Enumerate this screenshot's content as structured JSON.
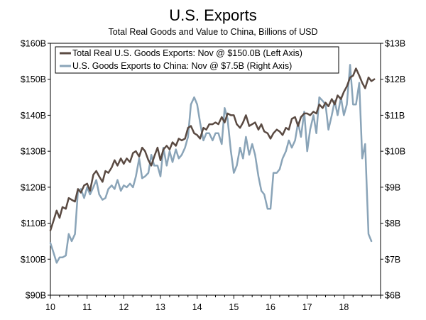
{
  "chart_data": {
    "type": "line",
    "title": "U.S. Exports",
    "subtitle": "Total Real Goods and Value to China, Billions of USD",
    "x_ticks": [
      "10",
      "11",
      "12",
      "13",
      "14",
      "15",
      "16",
      "17",
      "18"
    ],
    "y_left_ticks": [
      "$90B",
      "$100B",
      "$110B",
      "$120B",
      "$130B",
      "$140B",
      "$150B",
      "$160B"
    ],
    "y_right_ticks": [
      "$6B",
      "$7B",
      "$8B",
      "$9B",
      "$10B",
      "$11B",
      "$12B",
      "$13B"
    ],
    "ylim_left": [
      90,
      160
    ],
    "ylim_right": [
      6,
      13
    ],
    "xlim": [
      2010.0,
      2019.0
    ],
    "grid": false,
    "legend_position": "top-left",
    "series": [
      {
        "name": "Total Real U.S. Goods Exports: Nov @ $150.0B (Left Axis)",
        "axis": "left",
        "color": "#5a4a42",
        "points": [
          [
            2010.0,
            108.0
          ],
          [
            2010.08,
            110.5
          ],
          [
            2010.17,
            113.5
          ],
          [
            2010.25,
            111.5
          ],
          [
            2010.33,
            114.5
          ],
          [
            2010.42,
            114.0
          ],
          [
            2010.5,
            117.0
          ],
          [
            2010.58,
            116.5
          ],
          [
            2010.67,
            116.0
          ],
          [
            2010.75,
            119.5
          ],
          [
            2010.83,
            118.5
          ],
          [
            2010.92,
            120.5
          ],
          [
            2011.0,
            121.0
          ],
          [
            2011.08,
            119.0
          ],
          [
            2011.17,
            123.5
          ],
          [
            2011.25,
            124.5
          ],
          [
            2011.33,
            123.0
          ],
          [
            2011.42,
            121.5
          ],
          [
            2011.5,
            124.5
          ],
          [
            2011.58,
            124.0
          ],
          [
            2011.67,
            125.5
          ],
          [
            2011.75,
            127.5
          ],
          [
            2011.83,
            126.0
          ],
          [
            2011.92,
            128.0
          ],
          [
            2012.0,
            126.5
          ],
          [
            2012.08,
            128.0
          ],
          [
            2012.17,
            127.0
          ],
          [
            2012.25,
            129.5
          ],
          [
            2012.33,
            130.0
          ],
          [
            2012.42,
            128.5
          ],
          [
            2012.5,
            131.0
          ],
          [
            2012.58,
            130.0
          ],
          [
            2012.67,
            127.5
          ],
          [
            2012.75,
            126.0
          ],
          [
            2012.83,
            128.5
          ],
          [
            2012.92,
            131.0
          ],
          [
            2013.0,
            127.5
          ],
          [
            2013.08,
            130.5
          ],
          [
            2013.17,
            131.5
          ],
          [
            2013.25,
            130.5
          ],
          [
            2013.33,
            132.5
          ],
          [
            2013.42,
            131.5
          ],
          [
            2013.5,
            133.5
          ],
          [
            2013.58,
            133.0
          ],
          [
            2013.67,
            133.5
          ],
          [
            2013.75,
            136.5
          ],
          [
            2013.83,
            137.0
          ],
          [
            2013.92,
            135.0
          ],
          [
            2014.0,
            134.5
          ],
          [
            2014.08,
            133.5
          ],
          [
            2014.17,
            136.5
          ],
          [
            2014.25,
            136.0
          ],
          [
            2014.33,
            137.5
          ],
          [
            2014.42,
            137.5
          ],
          [
            2014.5,
            138.0
          ],
          [
            2014.58,
            137.5
          ],
          [
            2014.67,
            139.5
          ],
          [
            2014.75,
            138.0
          ],
          [
            2014.83,
            140.5
          ],
          [
            2014.92,
            140.0
          ],
          [
            2015.0,
            140.0
          ],
          [
            2015.08,
            137.5
          ],
          [
            2015.17,
            136.5
          ],
          [
            2015.25,
            138.0
          ],
          [
            2015.33,
            140.0
          ],
          [
            2015.42,
            137.0
          ],
          [
            2015.5,
            137.5
          ],
          [
            2015.58,
            138.0
          ],
          [
            2015.67,
            136.0
          ],
          [
            2015.75,
            137.5
          ],
          [
            2015.83,
            135.5
          ],
          [
            2015.92,
            135.0
          ],
          [
            2016.0,
            133.5
          ],
          [
            2016.08,
            135.0
          ],
          [
            2016.17,
            136.0
          ],
          [
            2016.25,
            135.5
          ],
          [
            2016.33,
            134.5
          ],
          [
            2016.42,
            136.5
          ],
          [
            2016.5,
            136.0
          ],
          [
            2016.58,
            139.0
          ],
          [
            2016.67,
            139.5
          ],
          [
            2016.75,
            137.0
          ],
          [
            2016.83,
            139.5
          ],
          [
            2016.92,
            140.5
          ],
          [
            2017.0,
            140.5
          ],
          [
            2017.08,
            140.0
          ],
          [
            2017.17,
            141.0
          ],
          [
            2017.25,
            140.5
          ],
          [
            2017.33,
            143.0
          ],
          [
            2017.42,
            142.0
          ],
          [
            2017.5,
            143.5
          ],
          [
            2017.58,
            142.5
          ],
          [
            2017.67,
            144.5
          ],
          [
            2017.75,
            143.0
          ],
          [
            2017.83,
            145.5
          ],
          [
            2017.92,
            144.5
          ],
          [
            2018.0,
            146.5
          ],
          [
            2018.08,
            148.0
          ],
          [
            2018.17,
            150.5
          ],
          [
            2018.25,
            151.0
          ],
          [
            2018.33,
            153.0
          ],
          [
            2018.42,
            151.0
          ],
          [
            2018.5,
            149.0
          ],
          [
            2018.58,
            147.5
          ],
          [
            2018.67,
            150.5
          ],
          [
            2018.75,
            149.5
          ],
          [
            2018.83,
            150.0
          ]
        ]
      },
      {
        "name": "U.S. Goods Exports to China: Nov @ $7.5B (Right Axis)",
        "axis": "right",
        "color": "#8aa4b8",
        "points": [
          [
            2010.0,
            7.45
          ],
          [
            2010.08,
            7.2
          ],
          [
            2010.17,
            6.9
          ],
          [
            2010.25,
            7.05
          ],
          [
            2010.33,
            7.05
          ],
          [
            2010.42,
            7.1
          ],
          [
            2010.5,
            7.7
          ],
          [
            2010.58,
            7.5
          ],
          [
            2010.67,
            7.7
          ],
          [
            2010.75,
            8.9
          ],
          [
            2010.83,
            8.95
          ],
          [
            2010.92,
            8.7
          ],
          [
            2011.0,
            9.0
          ],
          [
            2011.08,
            8.8
          ],
          [
            2011.17,
            9.0
          ],
          [
            2011.25,
            9.2
          ],
          [
            2011.33,
            8.8
          ],
          [
            2011.42,
            8.65
          ],
          [
            2011.5,
            8.7
          ],
          [
            2011.58,
            8.95
          ],
          [
            2011.67,
            9.05
          ],
          [
            2011.75,
            8.95
          ],
          [
            2011.83,
            9.2
          ],
          [
            2011.92,
            8.9
          ],
          [
            2012.0,
            9.05
          ],
          [
            2012.08,
            9.0
          ],
          [
            2012.17,
            9.1
          ],
          [
            2012.25,
            9.0
          ],
          [
            2012.33,
            9.3
          ],
          [
            2012.42,
            9.8
          ],
          [
            2012.5,
            9.25
          ],
          [
            2012.58,
            9.3
          ],
          [
            2012.67,
            9.4
          ],
          [
            2012.75,
            9.9
          ],
          [
            2012.83,
            9.6
          ],
          [
            2012.92,
            9.6
          ],
          [
            2013.0,
            9.3
          ],
          [
            2013.08,
            10.1
          ],
          [
            2013.17,
            9.6
          ],
          [
            2013.25,
            10.0
          ],
          [
            2013.33,
            9.7
          ],
          [
            2013.42,
            10.05
          ],
          [
            2013.5,
            9.8
          ],
          [
            2013.58,
            9.9
          ],
          [
            2013.67,
            10.1
          ],
          [
            2013.75,
            10.4
          ],
          [
            2013.83,
            11.3
          ],
          [
            2013.92,
            11.5
          ],
          [
            2014.0,
            11.3
          ],
          [
            2014.08,
            10.8
          ],
          [
            2014.17,
            10.3
          ],
          [
            2014.25,
            10.5
          ],
          [
            2014.33,
            10.5
          ],
          [
            2014.42,
            10.3
          ],
          [
            2014.5,
            10.5
          ],
          [
            2014.58,
            10.5
          ],
          [
            2014.67,
            10.2
          ],
          [
            2014.75,
            11.2
          ],
          [
            2014.83,
            10.9
          ],
          [
            2014.92,
            10.0
          ],
          [
            2015.0,
            9.4
          ],
          [
            2015.08,
            9.6
          ],
          [
            2015.17,
            10.1
          ],
          [
            2015.25,
            9.8
          ],
          [
            2015.33,
            10.4
          ],
          [
            2015.42,
            9.9
          ],
          [
            2015.5,
            10.2
          ],
          [
            2015.58,
            9.9
          ],
          [
            2015.67,
            9.3
          ],
          [
            2015.75,
            8.9
          ],
          [
            2015.83,
            8.8
          ],
          [
            2015.92,
            8.4
          ],
          [
            2016.0,
            8.4
          ],
          [
            2016.08,
            9.4
          ],
          [
            2016.17,
            9.4
          ],
          [
            2016.25,
            9.5
          ],
          [
            2016.33,
            9.8
          ],
          [
            2016.42,
            10.0
          ],
          [
            2016.5,
            10.3
          ],
          [
            2016.58,
            10.1
          ],
          [
            2016.67,
            10.3
          ],
          [
            2016.75,
            10.8
          ],
          [
            2016.83,
            10.4
          ],
          [
            2016.92,
            11.1
          ],
          [
            2017.0,
            10.0
          ],
          [
            2017.08,
            10.6
          ],
          [
            2017.17,
            11.0
          ],
          [
            2017.25,
            10.5
          ],
          [
            2017.33,
            11.5
          ],
          [
            2017.42,
            11.4
          ],
          [
            2017.5,
            11.3
          ],
          [
            2017.58,
            10.6
          ],
          [
            2017.67,
            11.0
          ],
          [
            2017.75,
            11.4
          ],
          [
            2017.83,
            11.0
          ],
          [
            2017.92,
            11.5
          ],
          [
            2018.0,
            11.0
          ],
          [
            2018.08,
            11.3
          ],
          [
            2018.17,
            12.4
          ],
          [
            2018.25,
            11.3
          ],
          [
            2018.33,
            11.3
          ],
          [
            2018.42,
            11.9
          ],
          [
            2018.5,
            9.8
          ],
          [
            2018.58,
            10.2
          ],
          [
            2018.67,
            7.7
          ],
          [
            2018.75,
            7.5
          ]
        ]
      }
    ]
  }
}
